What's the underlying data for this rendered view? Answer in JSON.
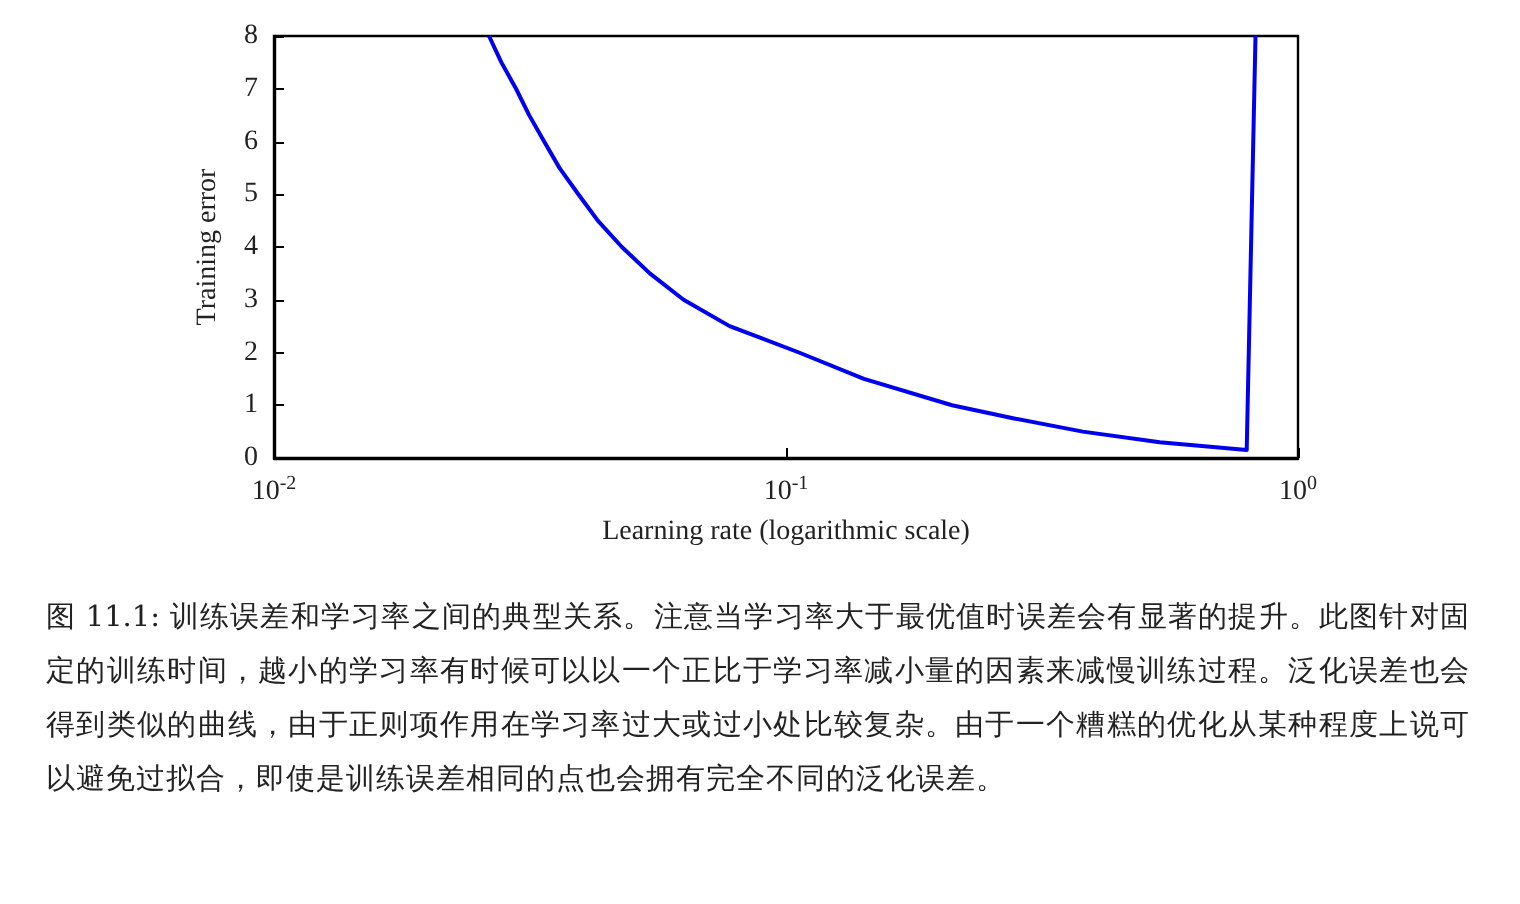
{
  "chart_data": {
    "type": "line",
    "xlabel": "Learning rate (logarithmic scale)",
    "ylabel": "Training error",
    "log": "x",
    "xlim": [
      0.01,
      1
    ],
    "xticks": [
      {
        "value": 0.01,
        "label": "10$^{-2}$"
      },
      {
        "value": 0.1,
        "label": "10$^{-1}$"
      },
      {
        "value": 1,
        "label": "10$^{0}$"
      }
    ],
    "ylim": [
      0,
      8
    ],
    "yticks": [
      0,
      1,
      2,
      3,
      4,
      5,
      6,
      7,
      8
    ],
    "grid": false,
    "marker": "none",
    "line_style": "solid",
    "series": [
      {
        "color": "#0000ee",
        "x": [
          0.0263,
          0.0278,
          0.0297,
          0.0315,
          0.0337,
          0.0361,
          0.0393,
          0.0429,
          0.0478,
          0.0542,
          0.0631,
          0.0776,
          0.106,
          0.142,
          0.211,
          0.279,
          0.38,
          0.537,
          0.794,
          0.826
        ],
        "values": [
          8,
          7.5,
          7,
          6.5,
          6,
          5.5,
          5,
          4.5,
          4,
          3.5,
          3,
          2.5,
          2,
          1.5,
          1,
          0.75,
          0.5,
          0.3,
          0.15,
          8
        ]
      }
    ],
    "annotations": [
      "图 11.1: 训练误差和学习率之间的典型关系。注意当学习率大于最优值时误差会有显著的提升。此图针对固定的训练时间，越小的学习率有时候可以以一个正比于学习率减小量的因素来减慢训练过程。泛化误差也会得到类似的曲线，由于正则项作用在学习率过大或过小处比较复杂。由于一个糟糕的优化从某种程度上说可以避免过拟合，即使是训练误差相同的点也会拥有完全不同的泛化误差。"
    ]
  }
}
